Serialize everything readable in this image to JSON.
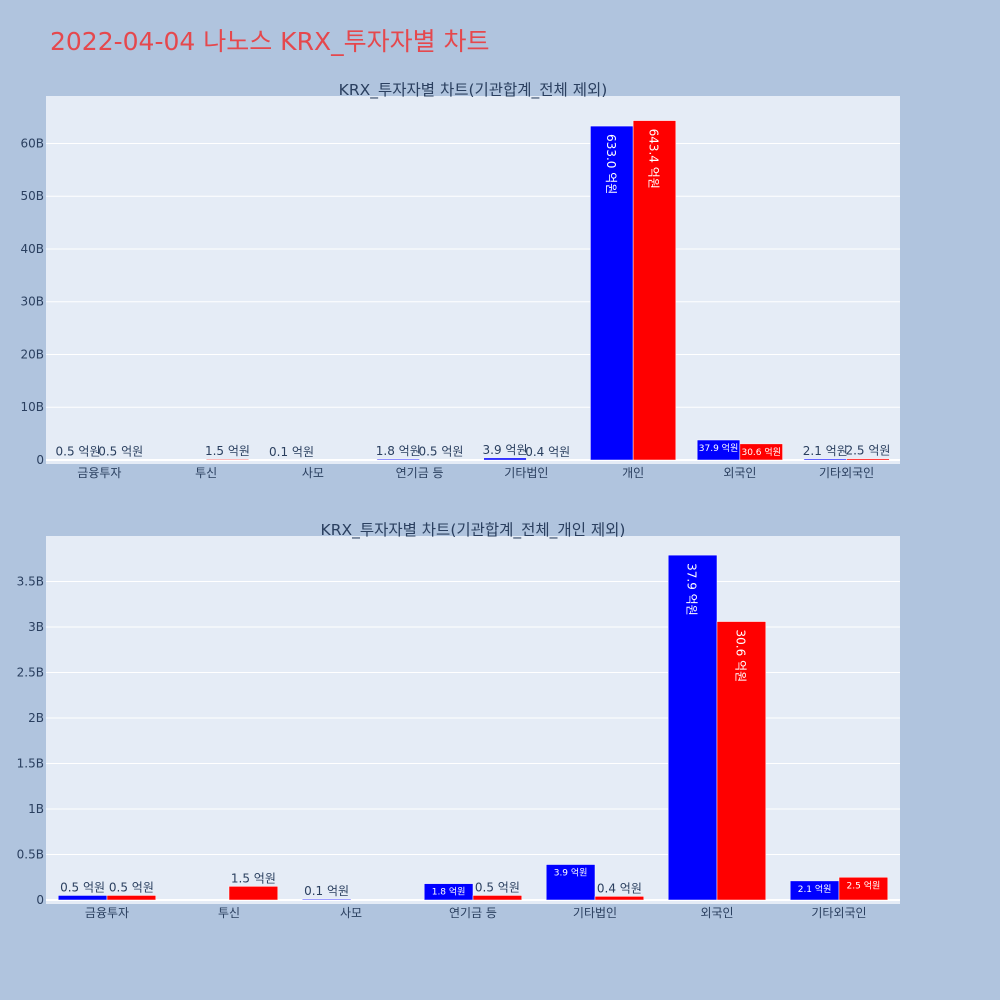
{
  "title": "2022-04-04 나노스 KRX_투자자별 차트",
  "colors": {
    "buy": "#0000ff",
    "sell": "#ff0000",
    "plot_bg": "#e5ecf6",
    "page_bg": "#b0c4de",
    "title": "#e5484d"
  },
  "chart_data": [
    {
      "type": "bar",
      "title": "KRX_투자자별 차트(기관합계_전체 제외)",
      "categories": [
        "금융투자",
        "투신",
        "사모",
        "연기금 등",
        "기타법인",
        "개인",
        "외국인",
        "기타외국인"
      ],
      "ylim": [
        0,
        69
      ],
      "yticks": [
        0,
        10,
        20,
        30,
        40,
        50,
        60
      ],
      "ytick_labels": [
        "0",
        "10B",
        "20B",
        "30B",
        "40B",
        "50B",
        "60B"
      ],
      "series": [
        {
          "values": [
            0.05,
            0,
            0.01,
            0.18,
            0.39,
            63.3,
            3.79,
            0.21
          ],
          "labels": [
            "0.5 억원",
            "",
            "0.1 억원",
            "1.8 억원",
            "3.9 억원",
            "633.0 억원",
            "37.9 억원",
            "2.1 억원"
          ]
        },
        {
          "values": [
            0.05,
            0.15,
            0,
            0.05,
            0.04,
            64.34,
            3.06,
            0.25
          ],
          "labels": [
            "0.5 억원",
            "1.5 억원",
            "",
            "0.5 억원",
            "0.4 억원",
            "643.4 억원",
            "30.6 억원",
            "2.5 억원"
          ]
        }
      ]
    },
    {
      "type": "bar",
      "title": "KRX_투자자별 차트(기관합계_전체_개인 제외)",
      "categories": [
        "금융투자",
        "투신",
        "사모",
        "연기금 등",
        "기타법인",
        "외국인",
        "기타외국인"
      ],
      "ylim": [
        0,
        4.0
      ],
      "yticks": [
        0,
        0.5,
        1,
        1.5,
        2,
        2.5,
        3,
        3.5
      ],
      "ytick_labels": [
        "0",
        "0.5B",
        "1B",
        "1.5B",
        "2B",
        "2.5B",
        "3B",
        "3.5B"
      ],
      "series": [
        {
          "values": [
            0.05,
            0,
            0.01,
            0.18,
            0.39,
            3.79,
            0.21
          ],
          "labels": [
            "0.5 억원",
            "",
            "0.1 억원",
            "1.8 억원",
            "3.9 억원",
            "37.9 억원",
            "2.1 억원"
          ]
        },
        {
          "values": [
            0.05,
            0.15,
            0,
            0.05,
            0.04,
            3.06,
            0.25
          ],
          "labels": [
            "0.5 억원",
            "1.5 억원",
            "",
            "0.5 억원",
            "0.4 억원",
            "30.6 억원",
            "2.5 억원"
          ]
        }
      ]
    }
  ]
}
